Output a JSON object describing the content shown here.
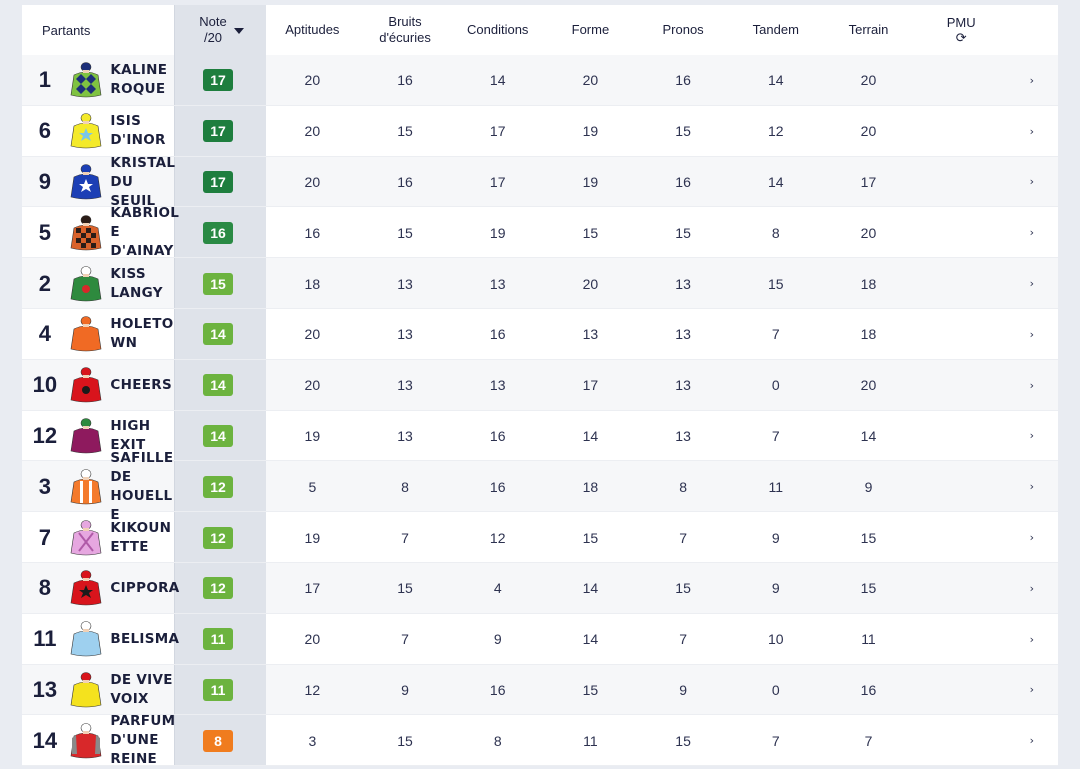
{
  "header": {
    "partants": "Partants",
    "note_line1": "Note",
    "note_line2": "/20",
    "aptitudes": "Aptitudes",
    "bruits_line1": "Bruits",
    "bruits_line2": "d'écuries",
    "conditions": "Conditions",
    "forme": "Forme",
    "pronos": "Pronos",
    "tandem": "Tandem",
    "terrain": "Terrain",
    "pmu": "PMU",
    "refresh_glyph": "⟳"
  },
  "colors": {
    "badge_17": "#1e7e3e",
    "badge_16": "#2a8a44",
    "badge_mid": "#6cb33f",
    "badge_low": "#f07c1e"
  },
  "rows": [
    {
      "num": "1",
      "name": "KALINE ROQUE",
      "note": "17",
      "tier": "dark",
      "aptitudes": "20",
      "bruits": "16",
      "conditions": "14",
      "forme": "20",
      "pronos": "16",
      "tandem": "14",
      "terrain": "20",
      "silk": {
        "body": "#7fc241",
        "pattern": "diamonds",
        "accent": "#1d2f7a",
        "cap": "#1d2f7a"
      }
    },
    {
      "num": "6",
      "name": "ISIS D'INOR",
      "note": "17",
      "tier": "dark",
      "aptitudes": "20",
      "bruits": "15",
      "conditions": "17",
      "forme": "19",
      "pronos": "15",
      "tandem": "12",
      "terrain": "20",
      "silk": {
        "body": "#f4ea2a",
        "pattern": "star",
        "accent": "#7ac6e8",
        "cap": "#f4ea2a"
      }
    },
    {
      "num": "9",
      "name": "KRISTAL DU SEUIL",
      "note": "17",
      "tier": "dark",
      "aptitudes": "20",
      "bruits": "16",
      "conditions": "17",
      "forme": "19",
      "pronos": "16",
      "tandem": "14",
      "terrain": "17",
      "silk": {
        "body": "#1c3fb5",
        "pattern": "star",
        "accent": "#ffffff",
        "cap": "#1c3fb5"
      }
    },
    {
      "num": "5",
      "name": "KABRIOLE D'AINAY",
      "note": "16",
      "tier": "dark2",
      "aptitudes": "16",
      "bruits": "15",
      "conditions": "19",
      "forme": "15",
      "pronos": "15",
      "tandem": "8",
      "terrain": "20",
      "silk": {
        "body": "#d9622b",
        "pattern": "check",
        "accent": "#2b1c17",
        "cap": "#2b1c17"
      }
    },
    {
      "num": "2",
      "name": "KISS LANGY",
      "note": "15",
      "tier": "mid",
      "aptitudes": "18",
      "bruits": "13",
      "conditions": "13",
      "forme": "20",
      "pronos": "13",
      "tandem": "15",
      "terrain": "18",
      "silk": {
        "body": "#2e8a3e",
        "pattern": "dot",
        "accent": "#d8282a",
        "cap": "#ffffff"
      }
    },
    {
      "num": "4",
      "name": "HOLETOWN",
      "note": "14",
      "tier": "mid",
      "aptitudes": "20",
      "bruits": "13",
      "conditions": "16",
      "forme": "13",
      "pronos": "13",
      "tandem": "7",
      "terrain": "18",
      "silk": {
        "body": "#f06a24",
        "pattern": "plain",
        "accent": "#f06a24",
        "cap": "#f06a24"
      }
    },
    {
      "num": "10",
      "name": "CHEERS",
      "note": "14",
      "tier": "mid",
      "aptitudes": "20",
      "bruits": "13",
      "conditions": "13",
      "forme": "17",
      "pronos": "13",
      "tandem": "0",
      "terrain": "20",
      "silk": {
        "body": "#d8141c",
        "pattern": "dot",
        "accent": "#1b1b1b",
        "cap": "#d8141c"
      }
    },
    {
      "num": "12",
      "name": "HIGH EXIT",
      "note": "14",
      "tier": "mid",
      "aptitudes": "19",
      "bruits": "13",
      "conditions": "16",
      "forme": "14",
      "pronos": "13",
      "tandem": "7",
      "terrain": "14",
      "silk": {
        "body": "#8e1a5e",
        "pattern": "plain",
        "accent": "#8e1a5e",
        "cap": "#2e8a3e"
      }
    },
    {
      "num": "3",
      "name": "SAFILLE DE HOUELLE",
      "note": "12",
      "tier": "mid",
      "aptitudes": "5",
      "bruits": "8",
      "conditions": "16",
      "forme": "18",
      "pronos": "8",
      "tandem": "11",
      "terrain": "9",
      "silk": {
        "body": "#f47a2c",
        "pattern": "stripes",
        "accent": "#ffffff",
        "cap": "#ffffff"
      }
    },
    {
      "num": "7",
      "name": "KIKOUNETTE",
      "note": "12",
      "tier": "mid",
      "aptitudes": "19",
      "bruits": "7",
      "conditions": "12",
      "forme": "15",
      "pronos": "7",
      "tandem": "9",
      "terrain": "15",
      "silk": {
        "body": "#e6a7e0",
        "pattern": "cross",
        "accent": "#b05aa8",
        "cap": "#e6a7e0"
      }
    },
    {
      "num": "8",
      "name": "CIPPORA",
      "note": "12",
      "tier": "mid",
      "aptitudes": "17",
      "bruits": "15",
      "conditions": "4",
      "forme": "14",
      "pronos": "15",
      "tandem": "9",
      "terrain": "15",
      "silk": {
        "body": "#d8141c",
        "pattern": "star",
        "accent": "#1b1b1b",
        "cap": "#d8141c"
      }
    },
    {
      "num": "11",
      "name": "BELISMA",
      "note": "11",
      "tier": "mid",
      "aptitudes": "20",
      "bruits": "7",
      "conditions": "9",
      "forme": "14",
      "pronos": "7",
      "tandem": "10",
      "terrain": "11",
      "silk": {
        "body": "#9ed0ef",
        "pattern": "plain",
        "accent": "#ffffff",
        "cap": "#ffffff"
      }
    },
    {
      "num": "13",
      "name": "DE VIVE VOIX",
      "note": "11",
      "tier": "mid",
      "aptitudes": "12",
      "bruits": "9",
      "conditions": "16",
      "forme": "15",
      "pronos": "9",
      "tandem": "0",
      "terrain": "16",
      "silk": {
        "body": "#f4e21e",
        "pattern": "plain",
        "accent": "#d8141c",
        "cap": "#d8141c"
      }
    },
    {
      "num": "14",
      "name": "PARFUM D'UNE REINE",
      "note": "8",
      "tier": "low",
      "aptitudes": "3",
      "bruits": "15",
      "conditions": "8",
      "forme": "11",
      "pronos": "15",
      "tandem": "7",
      "terrain": "7",
      "silk": {
        "body": "#d8282a",
        "pattern": "sleeves",
        "accent": "#8a8a8a",
        "cap": "#ffffff"
      }
    }
  ]
}
